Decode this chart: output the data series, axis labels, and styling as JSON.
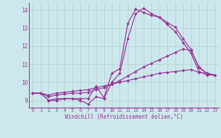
{
  "xlabel": "Windchill (Refroidissement éolien,°C)",
  "xlim": [
    -0.5,
    23.5
  ],
  "ylim": [
    8.6,
    14.4
  ],
  "xticks": [
    0,
    1,
    2,
    3,
    4,
    5,
    6,
    7,
    8,
    9,
    10,
    11,
    12,
    13,
    14,
    15,
    16,
    17,
    18,
    19,
    20,
    21,
    22,
    23
  ],
  "yticks": [
    9,
    10,
    11,
    12,
    13,
    14
  ],
  "background_color": "#cde8ec",
  "line_color": "#993399",
  "grid_color": "#b0cccc",
  "lines": [
    {
      "x": [
        0,
        1,
        2,
        3,
        4,
        5,
        6,
        7,
        8,
        9,
        10,
        11,
        12,
        13,
        14,
        15,
        16,
        17,
        18,
        19,
        20,
        21,
        22,
        23
      ],
      "y": [
        9.4,
        9.4,
        9.0,
        9.0,
        9.1,
        9.1,
        9.1,
        9.1,
        9.8,
        9.15,
        10.5,
        10.75,
        13.25,
        14.05,
        13.85,
        13.7,
        13.6,
        13.3,
        13.05,
        12.4,
        11.8,
        10.8,
        10.5,
        10.4
      ]
    },
    {
      "x": [
        0,
        1,
        2,
        3,
        4,
        5,
        6,
        7,
        8,
        9,
        10,
        11,
        12,
        13,
        14,
        15,
        16,
        17,
        18,
        19,
        20,
        21,
        22,
        23
      ],
      "y": [
        9.4,
        9.4,
        9.0,
        9.1,
        9.1,
        9.1,
        9.0,
        8.8,
        9.2,
        9.1,
        10.0,
        10.5,
        12.4,
        13.8,
        14.1,
        13.8,
        13.6,
        13.2,
        12.8,
        12.2,
        11.6,
        10.6,
        10.4,
        10.4
      ]
    },
    {
      "x": [
        0,
        1,
        2,
        3,
        4,
        5,
        6,
        7,
        8,
        9,
        10,
        11,
        12,
        13,
        14,
        15,
        16,
        17,
        18,
        19,
        20,
        21,
        22,
        23
      ],
      "y": [
        9.4,
        9.4,
        9.2,
        9.3,
        9.35,
        9.4,
        9.4,
        9.45,
        9.6,
        9.7,
        9.9,
        10.1,
        10.35,
        10.6,
        10.85,
        11.05,
        11.25,
        11.45,
        11.65,
        11.85,
        11.75,
        10.85,
        10.5,
        10.4
      ]
    },
    {
      "x": [
        0,
        1,
        2,
        3,
        4,
        5,
        6,
        7,
        8,
        9,
        10,
        11,
        12,
        13,
        14,
        15,
        16,
        17,
        18,
        19,
        20,
        21,
        22,
        23
      ],
      "y": [
        9.4,
        9.4,
        9.3,
        9.4,
        9.45,
        9.5,
        9.55,
        9.6,
        9.7,
        9.8,
        9.9,
        10.0,
        10.1,
        10.2,
        10.3,
        10.4,
        10.5,
        10.55,
        10.6,
        10.65,
        10.7,
        10.55,
        10.5,
        10.4
      ]
    }
  ]
}
